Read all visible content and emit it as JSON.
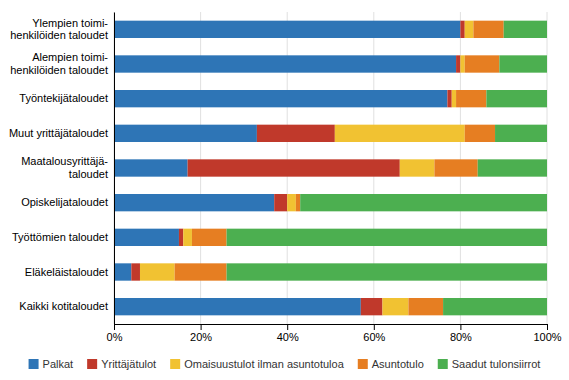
{
  "chart_data": {
    "type": "bar",
    "orientation": "horizontal",
    "stacked": true,
    "categories": [
      "Ylempien toimi-\nhenkilöiden taloudet",
      "Alempien toimi-\nhenkilöiden taloudet",
      "Työntekijätaloudet",
      "Muut yrittäjätaloudet",
      "Maatalousyrittäjä-\ntaloudet",
      "Opiskelijataloudet",
      "Työttömien taloudet",
      "Eläkeläistaloudet",
      "Kaikki kotitaloudet"
    ],
    "series": [
      {
        "name": "Palkat",
        "color": "#2E75B6",
        "values": [
          80,
          79,
          77,
          33,
          17,
          37,
          15,
          4,
          57
        ]
      },
      {
        "name": "Yrittäjätulot",
        "color": "#C0392B",
        "values": [
          1,
          1,
          1,
          18,
          49,
          3,
          1,
          2,
          5
        ]
      },
      {
        "name": "Omaisuustulot ilman asuntotuloa",
        "color": "#F1C232",
        "values": [
          2,
          1,
          1,
          30,
          8,
          2,
          2,
          8,
          6
        ]
      },
      {
        "name": "Asuntotulo",
        "color": "#E67E22",
        "values": [
          7,
          8,
          7,
          7,
          10,
          1,
          8,
          12,
          8
        ]
      },
      {
        "name": "Saadut tulonsiirrot",
        "color": "#4CAF50",
        "values": [
          10,
          11,
          14,
          12,
          16,
          57,
          74,
          74,
          24
        ]
      }
    ],
    "xlim": [
      0,
      100
    ],
    "xticks": [
      {
        "value": 0,
        "label": "0%"
      },
      {
        "value": 20,
        "label": "20%"
      },
      {
        "value": 40,
        "label": "40%"
      },
      {
        "value": 60,
        "label": "60%"
      },
      {
        "value": 80,
        "label": "80%"
      },
      {
        "value": 100,
        "label": "100%"
      }
    ],
    "grid": true,
    "legend": "bottom"
  }
}
